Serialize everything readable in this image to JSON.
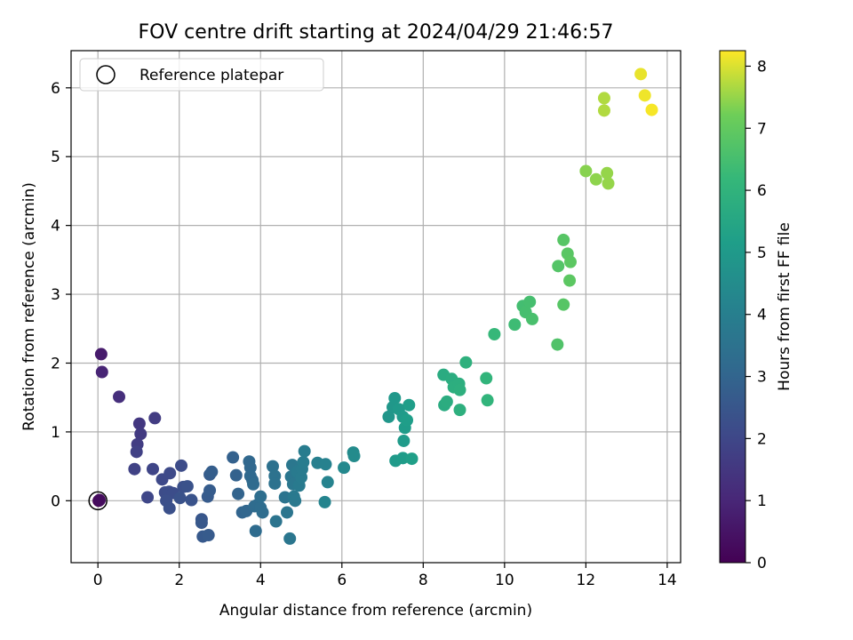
{
  "chart_data": {
    "type": "scatter",
    "title": "FOV centre drift starting at 2024/04/29 21:46:57",
    "xlabel": "Angular distance from reference (arcmin)",
    "ylabel": "Rotation from reference (arcmin)",
    "xlim": [
      -0.66,
      14.33
    ],
    "ylim": [
      -0.9,
      6.54
    ],
    "x_ticks": [
      0,
      2,
      4,
      6,
      8,
      10,
      12,
      14
    ],
    "y_ticks": [
      0,
      1,
      2,
      3,
      4,
      5,
      6
    ],
    "grid": true,
    "legend": {
      "placement": "top-left",
      "entries": [
        "Reference platepar"
      ]
    },
    "reference_point": {
      "x": 0,
      "y": 0,
      "label": "Reference platepar"
    },
    "colorbar": {
      "label": "Hours from first FF file",
      "colormap": "viridis",
      "min": 0,
      "max": 8.25,
      "ticks": [
        0,
        1,
        2,
        3,
        4,
        5,
        6,
        7,
        8
      ]
    },
    "points": [
      {
        "x": 0.02,
        "y": 0.0,
        "c": 0.0
      },
      {
        "x": 0.04,
        "y": 0.01,
        "c": 0.3
      },
      {
        "x": 0.08,
        "y": 2.13,
        "c": 0.7
      },
      {
        "x": 0.1,
        "y": 1.87,
        "c": 0.95
      },
      {
        "x": 0.52,
        "y": 1.51,
        "c": 1.25
      },
      {
        "x": 1.02,
        "y": 1.12,
        "c": 1.5
      },
      {
        "x": 1.05,
        "y": 0.97,
        "c": 1.6
      },
      {
        "x": 0.97,
        "y": 0.82,
        "c": 1.7
      },
      {
        "x": 0.95,
        "y": 0.71,
        "c": 1.8
      },
      {
        "x": 1.4,
        "y": 1.2,
        "c": 1.65
      },
      {
        "x": 0.9,
        "y": 0.46,
        "c": 1.85
      },
      {
        "x": 1.35,
        "y": 0.46,
        "c": 1.95
      },
      {
        "x": 1.22,
        "y": 0.05,
        "c": 2.0
      },
      {
        "x": 1.58,
        "y": 0.31,
        "c": 2.05
      },
      {
        "x": 1.77,
        "y": 0.4,
        "c": 2.1
      },
      {
        "x": 2.05,
        "y": 0.51,
        "c": 2.15
      },
      {
        "x": 1.65,
        "y": 0.12,
        "c": 2.15
      },
      {
        "x": 1.75,
        "y": 0.13,
        "c": 2.2
      },
      {
        "x": 1.85,
        "y": 0.11,
        "c": 2.2
      },
      {
        "x": 1.68,
        "y": 0.0,
        "c": 2.25
      },
      {
        "x": 1.76,
        "y": -0.11,
        "c": 2.3
      },
      {
        "x": 2.1,
        "y": 0.2,
        "c": 2.3
      },
      {
        "x": 2.2,
        "y": 0.21,
        "c": 2.35
      },
      {
        "x": 2.02,
        "y": 0.04,
        "c": 2.35
      },
      {
        "x": 2.3,
        "y": 0.01,
        "c": 2.4
      },
      {
        "x": 2.55,
        "y": -0.27,
        "c": 2.5
      },
      {
        "x": 2.55,
        "y": -0.32,
        "c": 2.55
      },
      {
        "x": 2.58,
        "y": -0.52,
        "c": 2.6
      },
      {
        "x": 2.72,
        "y": -0.5,
        "c": 2.65
      },
      {
        "x": 2.7,
        "y": 0.06,
        "c": 2.65
      },
      {
        "x": 2.75,
        "y": 0.15,
        "c": 2.7
      },
      {
        "x": 2.75,
        "y": 0.38,
        "c": 2.7
      },
      {
        "x": 2.8,
        "y": 0.42,
        "c": 2.75
      },
      {
        "x": 3.32,
        "y": 0.63,
        "c": 2.85
      },
      {
        "x": 3.4,
        "y": 0.37,
        "c": 2.9
      },
      {
        "x": 3.45,
        "y": 0.1,
        "c": 2.95
      },
      {
        "x": 3.55,
        "y": -0.17,
        "c": 3.0
      },
      {
        "x": 3.65,
        "y": -0.15,
        "c": 3.05
      },
      {
        "x": 3.72,
        "y": 0.57,
        "c": 3.1
      },
      {
        "x": 3.75,
        "y": 0.48,
        "c": 3.1
      },
      {
        "x": 3.75,
        "y": 0.36,
        "c": 3.15
      },
      {
        "x": 3.8,
        "y": 0.3,
        "c": 3.15
      },
      {
        "x": 3.82,
        "y": 0.24,
        "c": 3.2
      },
      {
        "x": 3.85,
        "y": -0.08,
        "c": 3.2
      },
      {
        "x": 3.88,
        "y": -0.44,
        "c": 3.25
      },
      {
        "x": 3.92,
        "y": -0.06,
        "c": 3.25
      },
      {
        "x": 4.0,
        "y": -0.1,
        "c": 3.3
      },
      {
        "x": 4.05,
        "y": -0.17,
        "c": 3.3
      },
      {
        "x": 4.0,
        "y": 0.06,
        "c": 3.35
      },
      {
        "x": 4.3,
        "y": 0.5,
        "c": 3.45
      },
      {
        "x": 4.35,
        "y": 0.36,
        "c": 3.5
      },
      {
        "x": 4.35,
        "y": 0.25,
        "c": 3.5
      },
      {
        "x": 4.38,
        "y": -0.3,
        "c": 3.55
      },
      {
        "x": 4.6,
        "y": 0.05,
        "c": 3.55
      },
      {
        "x": 4.65,
        "y": -0.17,
        "c": 3.6
      },
      {
        "x": 4.72,
        "y": -0.55,
        "c": 3.65
      },
      {
        "x": 4.75,
        "y": 0.35,
        "c": 3.65
      },
      {
        "x": 4.78,
        "y": 0.52,
        "c": 3.7
      },
      {
        "x": 4.8,
        "y": 0.24,
        "c": 3.7
      },
      {
        "x": 4.82,
        "y": 0.06,
        "c": 3.75
      },
      {
        "x": 4.85,
        "y": 0.0,
        "c": 3.75
      },
      {
        "x": 4.9,
        "y": 0.42,
        "c": 3.8
      },
      {
        "x": 4.95,
        "y": 0.22,
        "c": 3.8
      },
      {
        "x": 5.0,
        "y": 0.34,
        "c": 3.85
      },
      {
        "x": 5.02,
        "y": 0.46,
        "c": 3.85
      },
      {
        "x": 5.05,
        "y": 0.56,
        "c": 3.9
      },
      {
        "x": 5.08,
        "y": 0.72,
        "c": 3.9
      },
      {
        "x": 5.4,
        "y": 0.55,
        "c": 4.0
      },
      {
        "x": 5.6,
        "y": 0.53,
        "c": 4.1
      },
      {
        "x": 5.65,
        "y": 0.27,
        "c": 4.15
      },
      {
        "x": 5.58,
        "y": -0.02,
        "c": 4.2
      },
      {
        "x": 6.05,
        "y": 0.48,
        "c": 4.35
      },
      {
        "x": 6.28,
        "y": 0.7,
        "c": 4.45
      },
      {
        "x": 6.3,
        "y": 0.65,
        "c": 4.45
      },
      {
        "x": 7.15,
        "y": 1.22,
        "c": 4.85
      },
      {
        "x": 7.25,
        "y": 1.36,
        "c": 4.9
      },
      {
        "x": 7.3,
        "y": 1.49,
        "c": 4.95
      },
      {
        "x": 7.32,
        "y": 0.58,
        "c": 5.0
      },
      {
        "x": 7.4,
        "y": 1.33,
        "c": 5.0
      },
      {
        "x": 7.5,
        "y": 1.22,
        "c": 5.05
      },
      {
        "x": 7.52,
        "y": 0.87,
        "c": 5.05
      },
      {
        "x": 7.55,
        "y": 1.06,
        "c": 5.1
      },
      {
        "x": 7.5,
        "y": 0.62,
        "c": 5.1
      },
      {
        "x": 7.6,
        "y": 1.17,
        "c": 5.15
      },
      {
        "x": 7.65,
        "y": 1.39,
        "c": 5.15
      },
      {
        "x": 7.72,
        "y": 0.61,
        "c": 5.2
      },
      {
        "x": 8.5,
        "y": 1.83,
        "c": 5.7
      },
      {
        "x": 8.52,
        "y": 1.39,
        "c": 5.7
      },
      {
        "x": 8.58,
        "y": 1.44,
        "c": 5.75
      },
      {
        "x": 8.7,
        "y": 1.77,
        "c": 5.75
      },
      {
        "x": 8.75,
        "y": 1.65,
        "c": 5.8
      },
      {
        "x": 8.88,
        "y": 1.7,
        "c": 5.8
      },
      {
        "x": 8.9,
        "y": 1.61,
        "c": 5.85
      },
      {
        "x": 8.9,
        "y": 1.32,
        "c": 5.85
      },
      {
        "x": 9.05,
        "y": 2.01,
        "c": 5.9
      },
      {
        "x": 9.55,
        "y": 1.78,
        "c": 6.05
      },
      {
        "x": 9.58,
        "y": 1.46,
        "c": 6.05
      },
      {
        "x": 9.75,
        "y": 2.42,
        "c": 6.2
      },
      {
        "x": 10.25,
        "y": 2.56,
        "c": 6.35
      },
      {
        "x": 10.45,
        "y": 2.83,
        "c": 6.45
      },
      {
        "x": 10.52,
        "y": 2.74,
        "c": 6.5
      },
      {
        "x": 10.62,
        "y": 2.89,
        "c": 6.5
      },
      {
        "x": 10.68,
        "y": 2.64,
        "c": 6.55
      },
      {
        "x": 11.3,
        "y": 2.27,
        "c": 6.7
      },
      {
        "x": 11.32,
        "y": 3.41,
        "c": 6.75
      },
      {
        "x": 11.45,
        "y": 3.79,
        "c": 6.8
      },
      {
        "x": 11.45,
        "y": 2.85,
        "c": 6.8
      },
      {
        "x": 11.55,
        "y": 3.59,
        "c": 6.85
      },
      {
        "x": 11.62,
        "y": 3.47,
        "c": 6.9
      },
      {
        "x": 11.6,
        "y": 3.2,
        "c": 6.9
      },
      {
        "x": 12.0,
        "y": 4.79,
        "c": 7.4
      },
      {
        "x": 12.25,
        "y": 4.67,
        "c": 7.45
      },
      {
        "x": 12.52,
        "y": 4.76,
        "c": 7.5
      },
      {
        "x": 12.55,
        "y": 4.61,
        "c": 7.5
      },
      {
        "x": 12.45,
        "y": 5.85,
        "c": 7.7
      },
      {
        "x": 12.45,
        "y": 5.67,
        "c": 7.7
      },
      {
        "x": 13.35,
        "y": 6.2,
        "c": 8.1
      },
      {
        "x": 13.45,
        "y": 5.89,
        "c": 8.15
      },
      {
        "x": 13.62,
        "y": 5.68,
        "c": 8.2
      }
    ]
  }
}
